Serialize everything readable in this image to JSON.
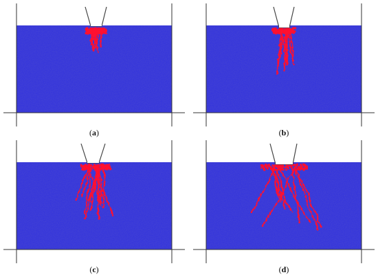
{
  "panels": [
    {
      "id": "a",
      "label": "a"
    },
    {
      "id": "b",
      "label": "b"
    },
    {
      "id": "c",
      "label": "c"
    },
    {
      "id": "d",
      "label": "d"
    }
  ],
  "colors": {
    "medium": "#2f2fe0",
    "damage": "#ff1030",
    "frame": "#333333",
    "tool": "#444444"
  }
}
